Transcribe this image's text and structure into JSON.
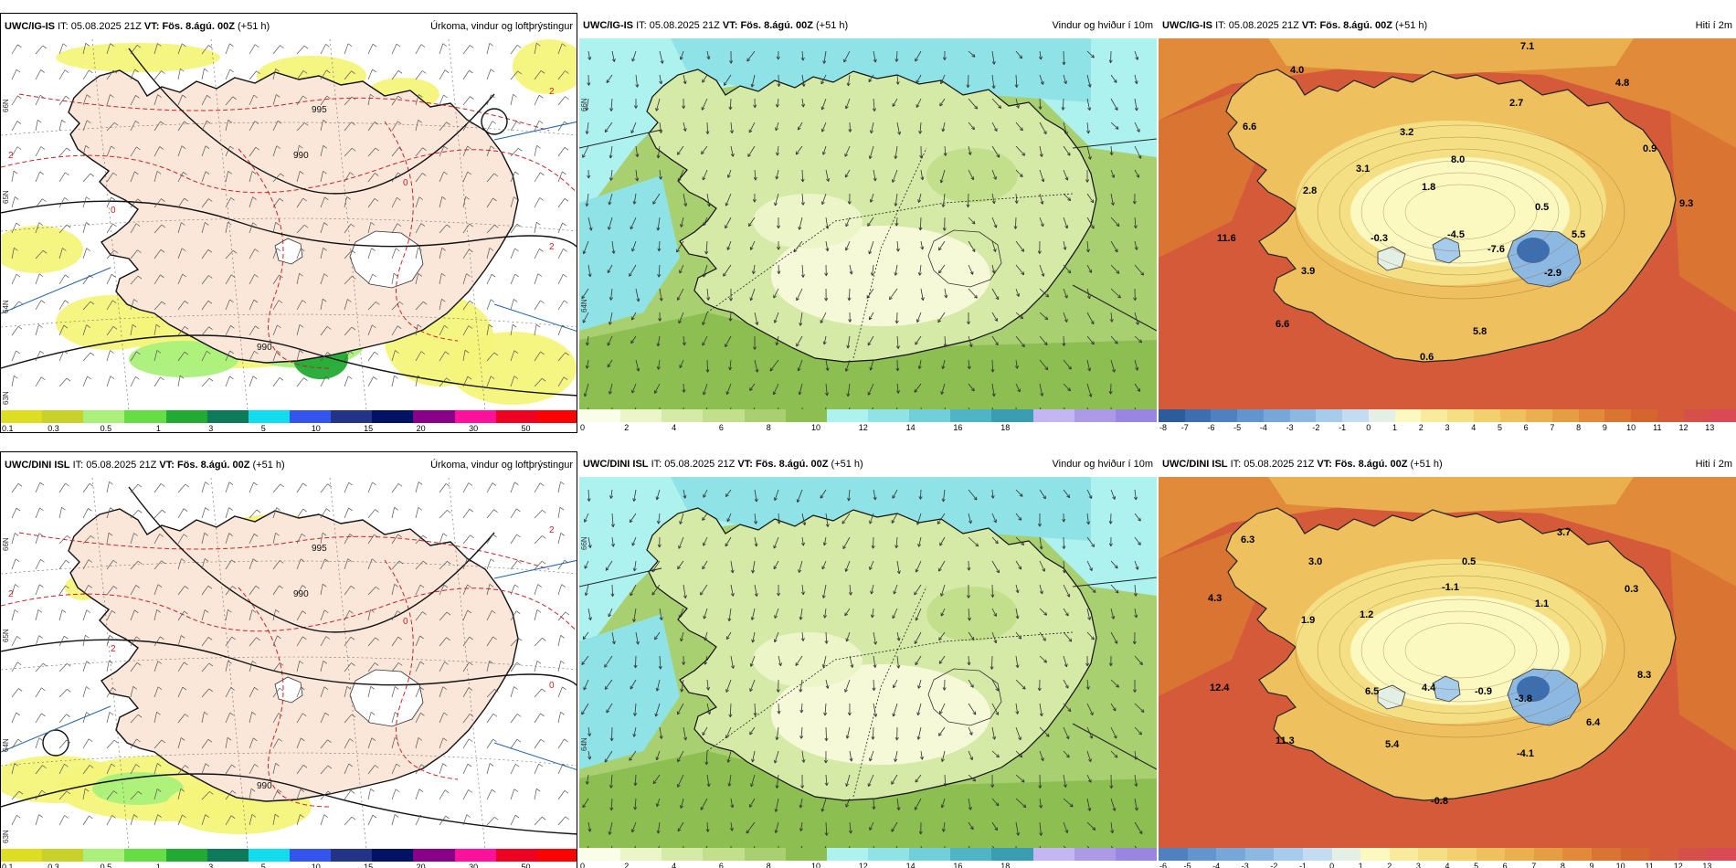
{
  "panels": [
    {
      "id": "top-precip",
      "model": "UWC/IG-IS",
      "it_label": "IT:",
      "it_value": "05.08.2025 21Z",
      "vt_label": "VT:",
      "vt_value": "Fös. 8.ágú. 00Z",
      "lead": "(+51 h)",
      "title": "Úrkoma, vindur og loftþrýstingur",
      "colorbar_labels": [
        "0.1",
        "0.3",
        "0.5",
        "1",
        "3",
        "5",
        "10",
        "15",
        "20",
        "30",
        "50"
      ],
      "colorbar_colors": [
        "#dddd22",
        "#c8d02a",
        "#aaf07a",
        "#66dd44",
        "#22aa33",
        "#0f7a5a",
        "#11ddee",
        "#3355ee",
        "#223388",
        "#001166",
        "#880088",
        "#ff1199",
        "#ee0022",
        "#ff0000"
      ],
      "map_labels": [
        "990",
        "995",
        "990",
        "2",
        "2",
        "0",
        "0",
        "2"
      ],
      "lat_labels": [
        "66N",
        "65N",
        "64N",
        "63N"
      ]
    },
    {
      "id": "top-wind",
      "model": "UWC/IG-IS",
      "it_label": "IT:",
      "it_value": "05.08.2025 21Z",
      "vt_label": "VT:",
      "vt_value": "Fös. 8.ágú. 00Z",
      "lead": "(+51 h)",
      "title": "Vindur og hviður í 10m",
      "colorbar_labels": [
        "0",
        "2",
        "4",
        "6",
        "8",
        "10",
        "12",
        "14",
        "16",
        "18"
      ],
      "colorbar_colors": [
        "#fafde8",
        "#ecf5c8",
        "#d6eaa8",
        "#c2df8c",
        "#a9d070",
        "#8cbe52",
        "#aef2f0",
        "#8fe2e6",
        "#70cfd8",
        "#4fb5c4",
        "#3a9db2",
        "#c4b6f2",
        "#ab9be6",
        "#9a86e0"
      ],
      "lat_labels": [
        "66N",
        "64N"
      ]
    },
    {
      "id": "top-temp",
      "model": "UWC/IG-IS",
      "it_label": "IT:",
      "it_value": "05.08.2025 21Z",
      "vt_label": "VT:",
      "vt_value": "Fös. 8.ágú. 00Z",
      "lead": "(+51 h)",
      "title": "Hiti í 2m",
      "colorbar_labels": [
        "-8",
        "-7",
        "-6",
        "-5",
        "-4",
        "-3",
        "-2",
        "-1",
        "0",
        "1",
        "2",
        "3",
        "4",
        "5",
        "6",
        "7",
        "8",
        "9",
        "10",
        "11",
        "12",
        "13"
      ],
      "colorbar_colors": [
        "#2c5c9c",
        "#3d6eb0",
        "#4f80c0",
        "#6294cd",
        "#77a6d8",
        "#8db8e2",
        "#a6cbeb",
        "#c3dcf1",
        "#e4efe6",
        "#fbf8c0",
        "#f8eb9c",
        "#f5df84",
        "#f2d070",
        "#eec05e",
        "#eab050",
        "#e69e44",
        "#e08a3a",
        "#d97432",
        "#d5652f",
        "#d45a3a",
        "#d55048",
        "#d94a55"
      ],
      "values": [
        "7.1",
        "4.0",
        "4.8",
        "6.6",
        "2.7",
        "3.2",
        "0.9",
        "8.0",
        "3.1",
        "1.8",
        "2.8",
        "9.3",
        "0.5",
        "11.6",
        "-0.3",
        "-4.5",
        "-7.6",
        "5.5",
        "-2.9",
        "3.9",
        "6.6",
        "5.8",
        "0.6"
      ]
    },
    {
      "id": "bottom-precip",
      "model": "UWC/DINI ISL",
      "it_label": "IT:",
      "it_value": "05.08.2025 21Z",
      "vt_label": "VT:",
      "vt_value": "Fös. 8.ágú. 00Z",
      "lead": "(+51 h)",
      "title": "Úrkoma, vindur og loftþrýstingur",
      "colorbar_labels": [
        "0.1",
        "0.3",
        "0.5",
        "1",
        "3",
        "5",
        "10",
        "15",
        "20",
        "30",
        "50"
      ],
      "colorbar_colors": [
        "#dddd22",
        "#c8d02a",
        "#aaf07a",
        "#66dd44",
        "#22aa33",
        "#0f7a5a",
        "#11ddee",
        "#3355ee",
        "#223388",
        "#001166",
        "#880088",
        "#ff1199",
        "#ee0022",
        "#ff0000"
      ],
      "map_labels": [
        "990",
        "995",
        "990",
        "2",
        "0",
        "0",
        "2",
        "2"
      ],
      "lat_labels": [
        "66N",
        "65N",
        "64N",
        "63N"
      ]
    },
    {
      "id": "bottom-wind",
      "model": "UWC/DINI ISL",
      "it_label": "IT:",
      "it_value": "05.08.2025 21Z",
      "vt_label": "VT:",
      "vt_value": "Fös. 8.ágú. 00Z",
      "lead": "(+51 h)",
      "title": "Vindur og hviður í 10m",
      "colorbar_labels": [
        "0",
        "2",
        "4",
        "6",
        "8",
        "10",
        "12",
        "14",
        "16",
        "18"
      ],
      "colorbar_colors": [
        "#fafde8",
        "#ecf5c8",
        "#d6eaa8",
        "#c2df8c",
        "#a9d070",
        "#8cbe52",
        "#aef2f0",
        "#8fe2e6",
        "#70cfd8",
        "#4fb5c4",
        "#3a9db2",
        "#c4b6f2",
        "#ab9be6",
        "#9a86e0"
      ],
      "lat_labels": [
        "66N",
        "64N"
      ]
    },
    {
      "id": "bottom-temp",
      "model": "UWC/DINI ISL",
      "it_label": "IT:",
      "it_value": "05.08.2025 21Z",
      "vt_label": "VT:",
      "vt_value": "Fös. 8.ágú. 00Z",
      "lead": "(+51 h)",
      "title": "Hiti í 2m",
      "colorbar_labels": [
        "-6",
        "-5",
        "-4",
        "-3",
        "-2",
        "-1",
        "0",
        "1",
        "2",
        "3",
        "4",
        "5",
        "6",
        "7",
        "8",
        "9",
        "10",
        "11",
        "12",
        "13"
      ],
      "colorbar_colors": [
        "#4f80c0",
        "#6294cd",
        "#77a6d8",
        "#8db8e2",
        "#a6cbeb",
        "#c3dcf1",
        "#e4efe6",
        "#fbf8c0",
        "#f8eb9c",
        "#f5df84",
        "#f2d070",
        "#eec05e",
        "#eab050",
        "#e69e44",
        "#e08a3a",
        "#d97432",
        "#d5652f",
        "#d45a3a",
        "#d55048",
        "#d94a55"
      ],
      "values": [
        "6.3",
        "3.0",
        "3.7",
        "0.5",
        "4.3",
        "-1.1",
        "0.3",
        "1.1",
        "1.9",
        "1.2",
        "12.4",
        "6.5",
        "4.4",
        "-0.9",
        "-3.8",
        "8.3",
        "6.4",
        "11.3",
        "5.4",
        "-4.1",
        "-0.8"
      ]
    }
  ]
}
